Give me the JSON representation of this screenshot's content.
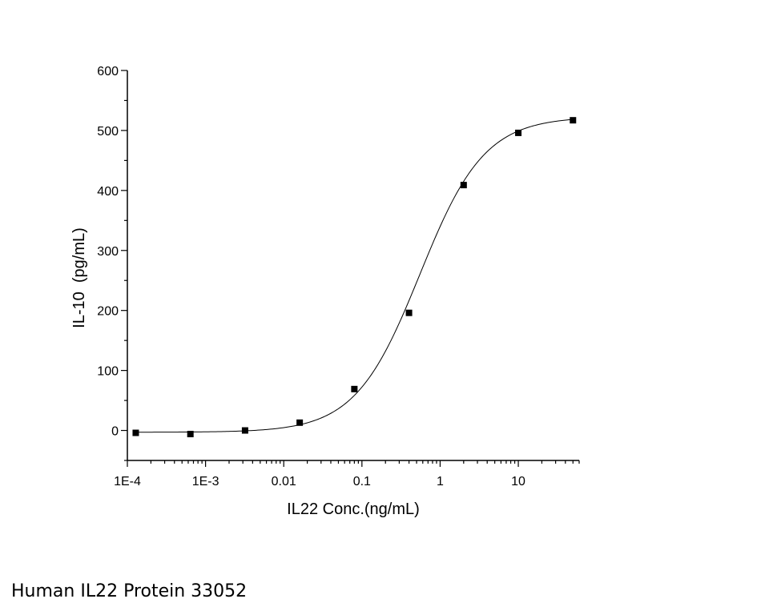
{
  "caption": "Human IL22 Protein 33052",
  "chart_data": {
    "type": "scatter",
    "xlabel": "IL22 Conc.(ng/mL)",
    "ylabel": "IL-10  (pg/mL)",
    "x_scale": "log",
    "xlim": [
      0.0001,
      60
    ],
    "ylim": [
      -50,
      600
    ],
    "x_ticks": [
      {
        "value": 0.0001,
        "label": "1E-4"
      },
      {
        "value": 0.001,
        "label": "1E-3"
      },
      {
        "value": 0.01,
        "label": "0.01"
      },
      {
        "value": 0.1,
        "label": "0.1"
      },
      {
        "value": 1,
        "label": "1"
      },
      {
        "value": 10,
        "label": "10"
      }
    ],
    "y_ticks": [
      {
        "value": 0,
        "label": "0"
      },
      {
        "value": 100,
        "label": "100"
      },
      {
        "value": 200,
        "label": "200"
      },
      {
        "value": 300,
        "label": "300"
      },
      {
        "value": 400,
        "label": "400"
      },
      {
        "value": 500,
        "label": "500"
      },
      {
        "value": 600,
        "label": "600"
      }
    ],
    "series": [
      {
        "marker": "square",
        "color": "#000000",
        "x": [
          0.000128,
          0.00064,
          0.0032,
          0.016,
          0.08,
          0.4,
          2,
          10,
          50
        ],
        "y": [
          -4,
          -6,
          0,
          13,
          69,
          196,
          409,
          496,
          517
        ]
      }
    ],
    "fit": {
      "type": "4PL",
      "bottom": -3,
      "top": 523,
      "ec50": 0.55,
      "hill": 1.05,
      "color": "#000000"
    },
    "grid": false,
    "legend": "none"
  }
}
